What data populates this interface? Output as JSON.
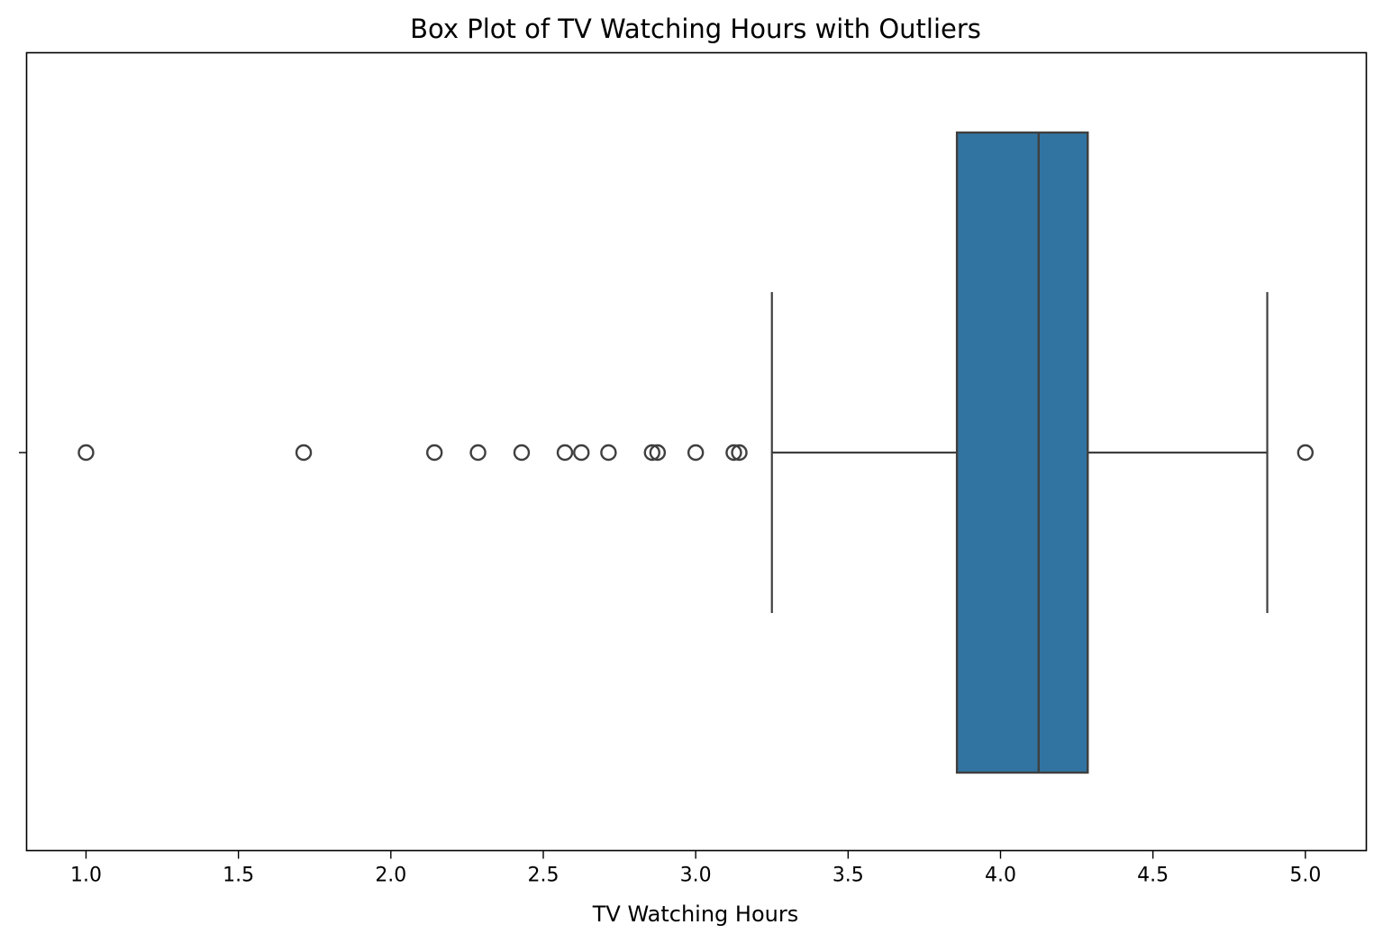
{
  "chart_data": {
    "type": "box",
    "orientation": "horizontal",
    "title": "Box Plot of TV Watching Hours with Outliers",
    "xlabel": "TV Watching Hours",
    "ylabel": "",
    "xlim": [
      0.805,
      5.2
    ],
    "xticks": [
      "1.0",
      "1.5",
      "2.0",
      "2.5",
      "3.0",
      "3.5",
      "4.0",
      "4.5",
      "5.0"
    ],
    "grid": false,
    "box": {
      "whisker_low": 3.25,
      "q1": 3.857,
      "median": 4.125,
      "q3": 4.286,
      "whisker_high": 4.875
    },
    "outliers": [
      1.0,
      1.714,
      2.143,
      2.286,
      2.429,
      2.571,
      2.625,
      2.714,
      2.857,
      2.875,
      3.0,
      3.125,
      3.143,
      5.0
    ],
    "colors": {
      "box_fill": "#3274a1",
      "line": "#3f3f3f"
    }
  }
}
